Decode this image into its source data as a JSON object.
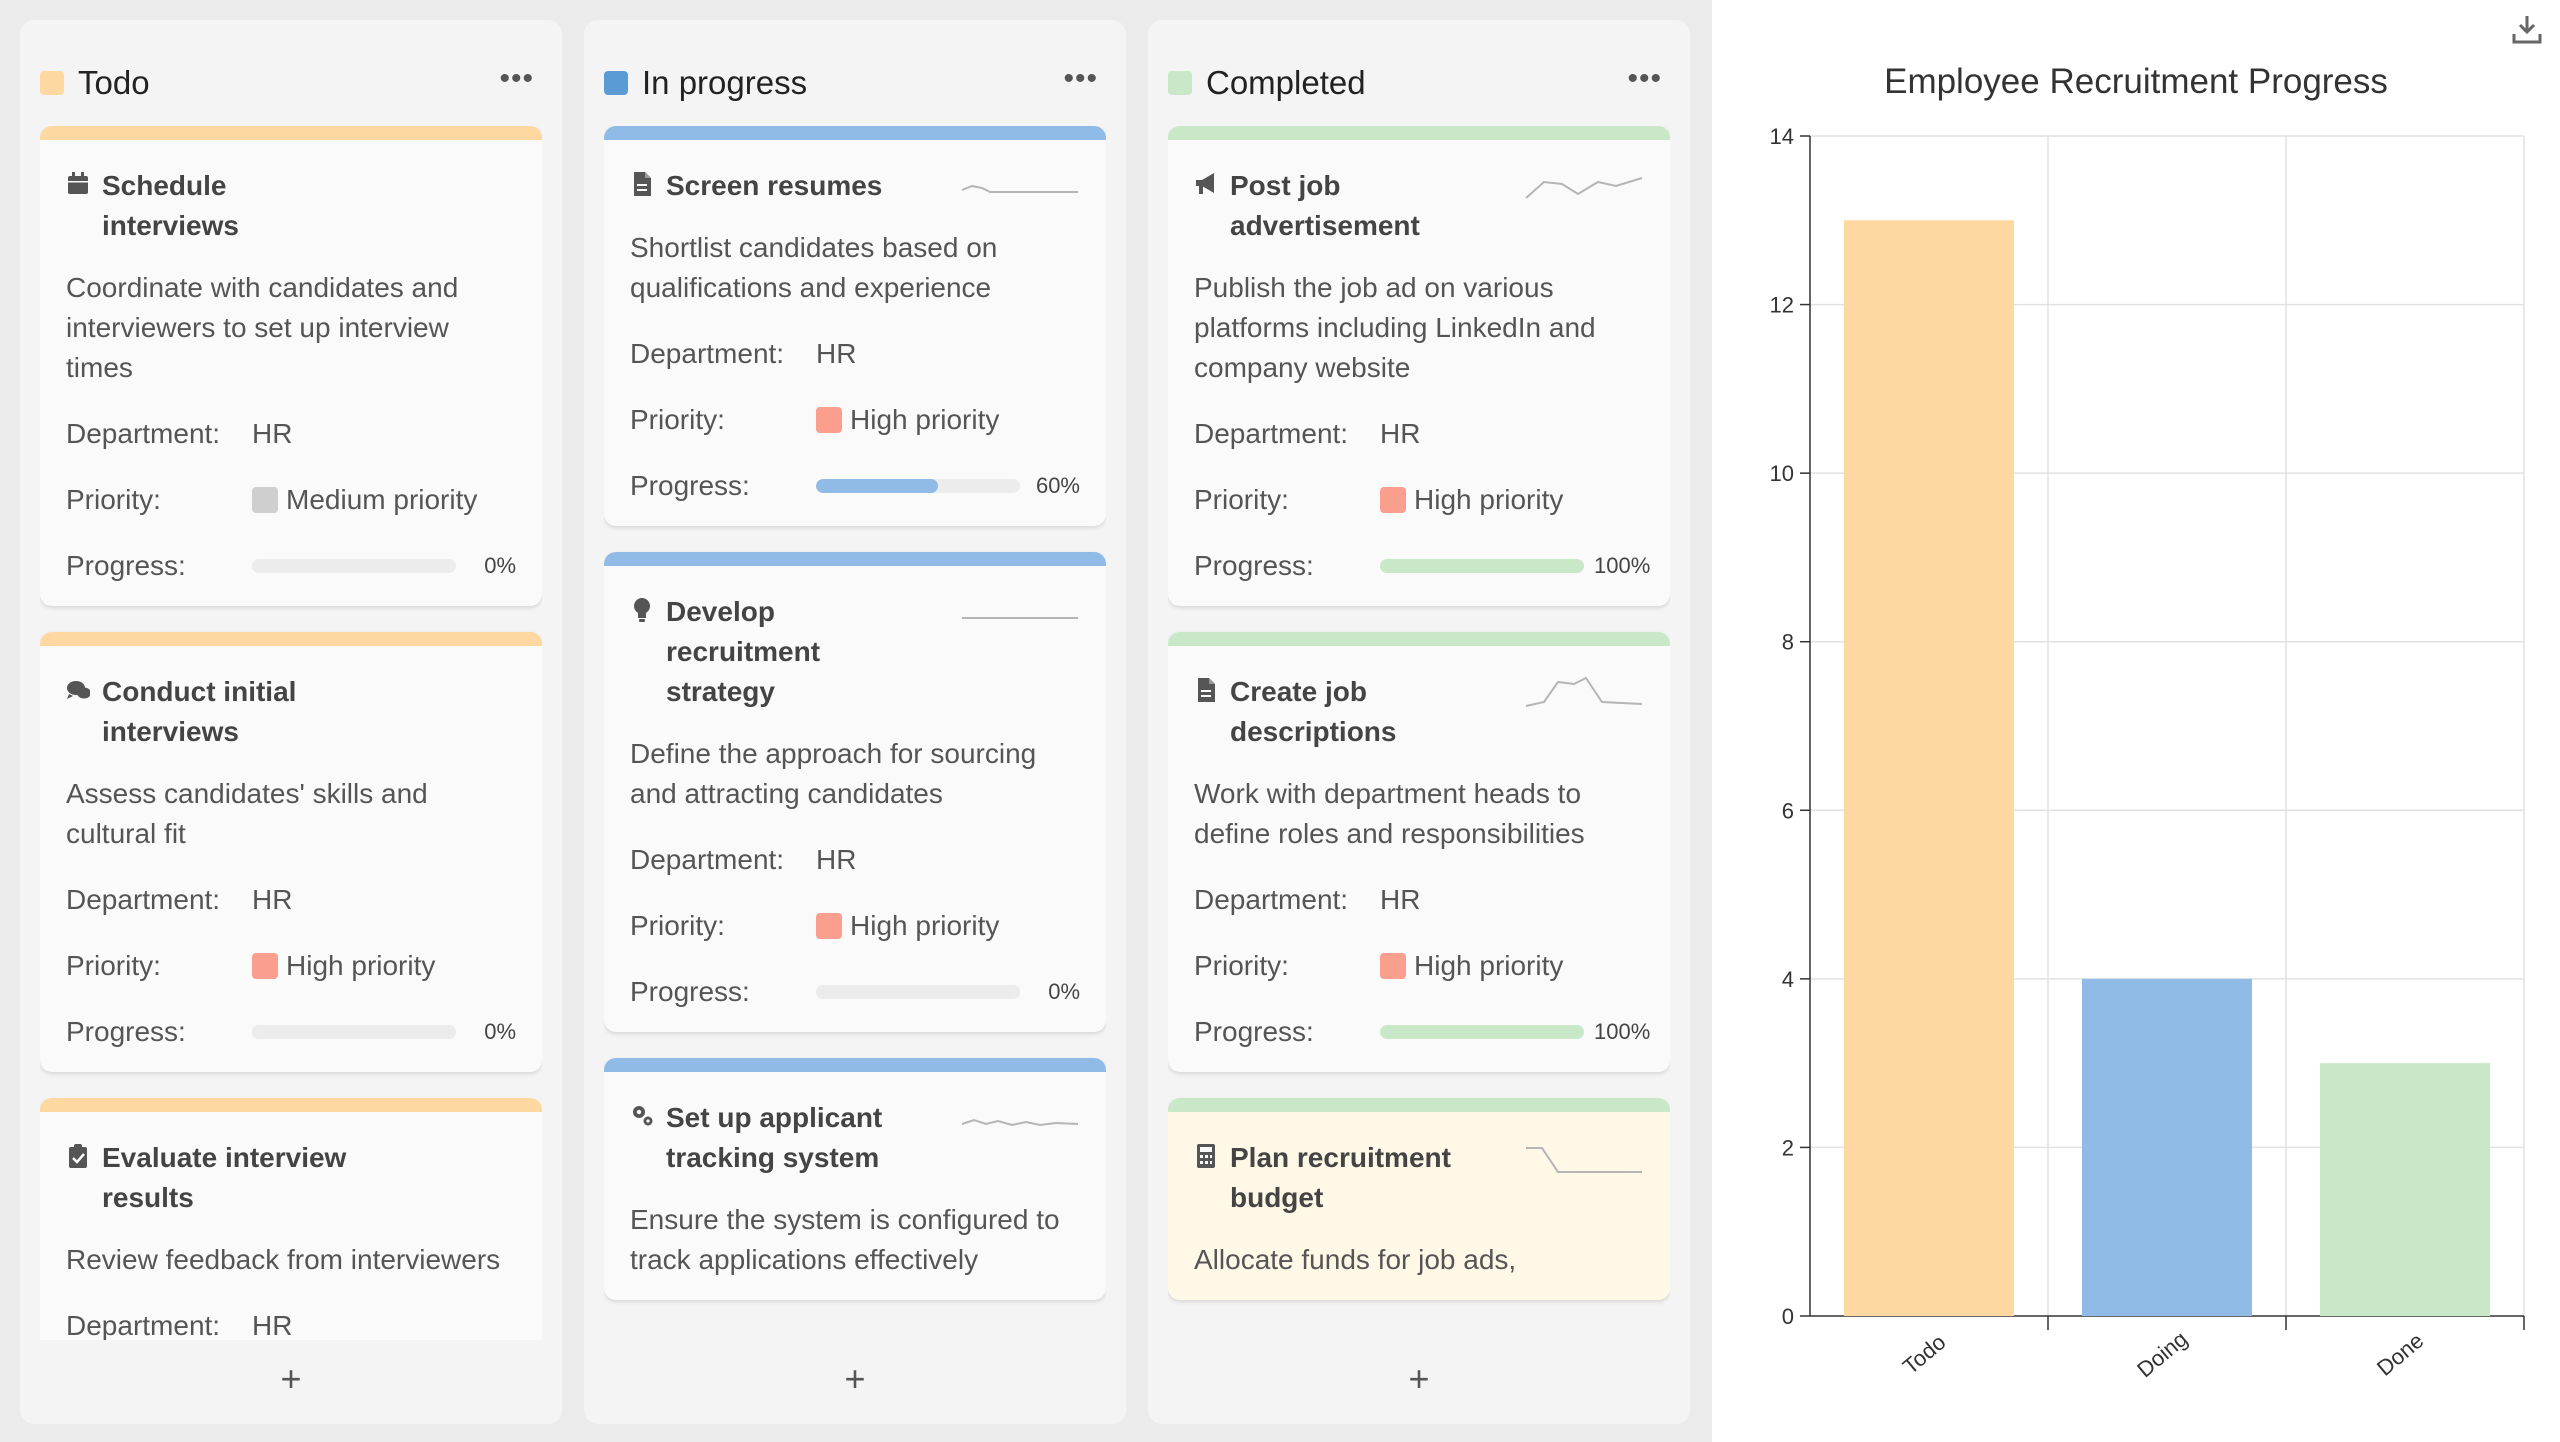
{
  "columns": [
    {
      "title": "Todo",
      "color": "#ffd7a0",
      "bar_color": "#ffd7a0",
      "menu": "•••",
      "add_label": "+",
      "cards": [
        {
          "icon": "calendar-icon",
          "title": "Schedule interviews",
          "description": "Coordinate with candidates and interviewers to set up interview times",
          "department_label": "Department:",
          "department": "HR",
          "priority_label": "Priority:",
          "priority": "Medium priority",
          "priority_color": "#cfcfcf",
          "progress_label": "Progress:",
          "progress": 0,
          "progress_text": "0%"
        },
        {
          "icon": "comments-icon",
          "title": "Conduct initial interviews",
          "description": "Assess candidates' skills and cultural fit",
          "department_label": "Department:",
          "department": "HR",
          "priority_label": "Priority:",
          "priority": "High priority",
          "priority_color": "#fa9f8e",
          "progress_label": "Progress:",
          "progress": 0,
          "progress_text": "0%"
        },
        {
          "icon": "clipboard-check-icon",
          "title": "Evaluate interview results",
          "description": "Review feedback from interviewers",
          "department_label": "Department:",
          "department": "HR"
        }
      ]
    },
    {
      "title": "In progress",
      "color": "#5b9bd5",
      "bar_color": "#8fbbe6",
      "menu": "•••",
      "add_label": "+",
      "cards": [
        {
          "icon": "document-icon",
          "title": "Screen resumes",
          "description": "Shortlist candidates based on qualifications and experience",
          "department_label": "Department:",
          "department": "HR",
          "priority_label": "Priority:",
          "priority": "High priority",
          "priority_color": "#fa9f8e",
          "progress_label": "Progress:",
          "progress": 60,
          "progress_text": "60%",
          "spark": "flat-bump"
        },
        {
          "icon": "lightbulb-icon",
          "title": "Develop recruitment strategy",
          "description": "Define the approach for sourcing and attracting candidates",
          "department_label": "Department:",
          "department": "HR",
          "priority_label": "Priority:",
          "priority": "High priority",
          "priority_color": "#fa9f8e",
          "progress_label": "Progress:",
          "progress": 0,
          "progress_text": "0%",
          "spark": "flat"
        },
        {
          "icon": "gears-icon",
          "title": "Set up applicant tracking system",
          "description": "Ensure the system is configured to track applications effectively",
          "spark": "wavy"
        }
      ]
    },
    {
      "title": "Completed",
      "color": "#c8e8c8",
      "bar_color": "#c8e8c8",
      "menu": "•••",
      "add_label": "+",
      "cards": [
        {
          "icon": "megaphone-icon",
          "title": "Post job advertisement",
          "description": "Publish the job ad on various platforms including LinkedIn and company website",
          "department_label": "Department:",
          "department": "HR",
          "priority_label": "Priority:",
          "priority": "High priority",
          "priority_color": "#fa9f8e",
          "progress_label": "Progress:",
          "progress": 100,
          "progress_text": "100%",
          "spark": "zigzag"
        },
        {
          "icon": "document-icon",
          "title": "Create job descriptions",
          "description": "Work with department heads to define roles and responsibilities",
          "department_label": "Department:",
          "department": "HR",
          "priority_label": "Priority:",
          "priority": "High priority",
          "priority_color": "#fa9f8e",
          "progress_label": "Progress:",
          "progress": 100,
          "progress_text": "100%",
          "spark": "peak"
        },
        {
          "icon": "calculator-icon",
          "title": "Plan recruitment budget",
          "description": "Allocate funds for job ads,",
          "highlight": true,
          "spark": "drop"
        }
      ]
    }
  ],
  "chart_data": {
    "type": "bar",
    "title": "Employee Recruitment Progress",
    "categories": [
      "Todo",
      "Doing",
      "Done"
    ],
    "values": [
      13,
      4,
      3
    ],
    "colors": [
      "#ffd7a0",
      "#8fbbe6",
      "#c8e8c8"
    ],
    "ylim": [
      0,
      14
    ],
    "yticks": [
      0,
      2,
      4,
      6,
      8,
      10,
      12,
      14
    ],
    "xlabel": "",
    "ylabel": "",
    "grid": true
  },
  "toolbar": {
    "download_icon": "download-icon"
  }
}
